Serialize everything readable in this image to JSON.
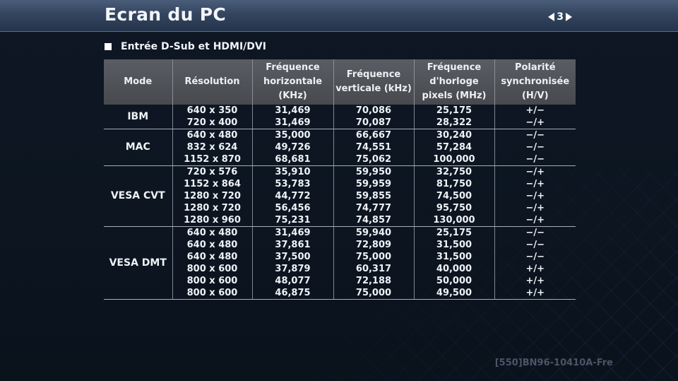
{
  "header": {
    "title": "Ecran du PC",
    "page_number": "3"
  },
  "section": {
    "label": "Entrée D-Sub et HDMI/DVI"
  },
  "table": {
    "columns": [
      "Mode",
      "Résolution",
      "Fréquence horizontale (KHz)",
      "Fréquence verticale (kHz)",
      "Fréquence d'horloge pixels (MHz)",
      "Polarité synchronisée (H/V)"
    ],
    "groups": [
      {
        "mode": "IBM",
        "rows": [
          [
            "640 x 350",
            "31,469",
            "70,086",
            "25,175",
            "+/−"
          ],
          [
            "720 x 400",
            "31,469",
            "70,087",
            "28,322",
            "−/+"
          ]
        ]
      },
      {
        "mode": "MAC",
        "rows": [
          [
            "640 x 480",
            "35,000",
            "66,667",
            "30,240",
            "−/−"
          ],
          [
            "832 x 624",
            "49,726",
            "74,551",
            "57,284",
            "−/−"
          ],
          [
            "1152 x 870",
            "68,681",
            "75,062",
            "100,000",
            "−/−"
          ]
        ]
      },
      {
        "mode": "VESA CVT",
        "rows": [
          [
            "720 x 576",
            "35,910",
            "59,950",
            "32,750",
            "−/+"
          ],
          [
            "1152 x 864",
            "53,783",
            "59,959",
            "81,750",
            "−/+"
          ],
          [
            "1280 x 720",
            "44,772",
            "59,855",
            "74,500",
            "−/+"
          ],
          [
            "1280 x 720",
            "56,456",
            "74,777",
            "95,750",
            "−/+"
          ],
          [
            "1280 x 960",
            "75,231",
            "74,857",
            "130,000",
            "−/+"
          ]
        ]
      },
      {
        "mode": "VESA DMT",
        "rows": [
          [
            "640 x 480",
            "31,469",
            "59,940",
            "25,175",
            "−/−"
          ],
          [
            "640 x 480",
            "37,861",
            "72,809",
            "31,500",
            "−/−"
          ],
          [
            "640 x 480",
            "37,500",
            "75,000",
            "31,500",
            "−/−"
          ],
          [
            "800 x 600",
            "37,879",
            "60,317",
            "40,000",
            "+/+"
          ],
          [
            "800 x 600",
            "48,077",
            "72,188",
            "50,000",
            "+/+"
          ],
          [
            "800 x 600",
            "46,875",
            "75,000",
            "49,500",
            "+/+"
          ]
        ]
      }
    ]
  },
  "footer": {
    "code": "[550]BN96-10410A-Fre"
  },
  "colors": {
    "background": "#0c1520",
    "title_bar": "#34455f",
    "table_header": "#4f5257",
    "text": "#eef2f7"
  }
}
